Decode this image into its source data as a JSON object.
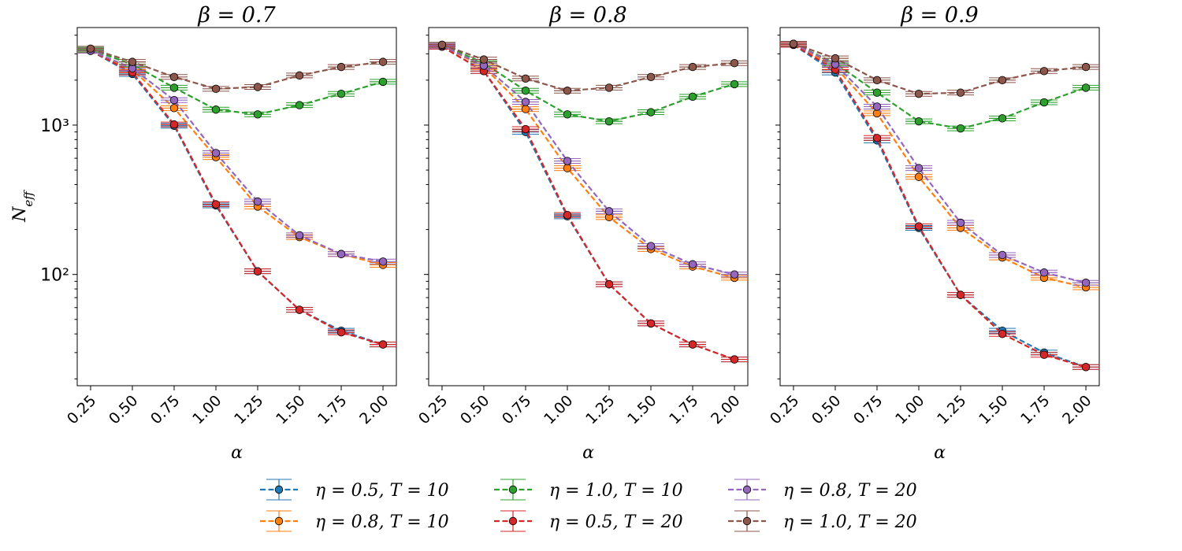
{
  "chart_data": [
    {
      "type": "line",
      "title": "β = 0.7",
      "xlabel": "α",
      "ylabel": "N_eff",
      "yscale": "log",
      "ylim": [
        18,
        4500
      ],
      "xlim": [
        0.17,
        2.08
      ],
      "x": [
        0.25,
        0.5,
        0.75,
        1.0,
        1.25,
        1.5,
        1.75,
        2.0
      ],
      "x_tick_labels": [
        "0.25",
        "0.50",
        "0.75",
        "1.00",
        "1.25",
        "1.50",
        "1.75",
        "2.00"
      ],
      "y_tick_labels": [
        "10³",
        "10²"
      ],
      "series": [
        {
          "name": "η = 0.5, T = 10",
          "values": [
            3150,
            2200,
            990,
            290,
            105,
            58,
            42,
            34
          ]
        },
        {
          "name": "η = 0.8, T = 10",
          "values": [
            3150,
            2350,
            1300,
            610,
            285,
            178,
            137,
            116
          ]
        },
        {
          "name": "η = 1.0, T = 10",
          "values": [
            3200,
            2550,
            1780,
            1270,
            1180,
            1360,
            1620,
            1950
          ]
        },
        {
          "name": "η = 0.5, T = 20",
          "values": [
            3150,
            2250,
            1010,
            295,
            105,
            58,
            41,
            34
          ]
        },
        {
          "name": "η = 0.8, T = 20",
          "values": [
            3150,
            2400,
            1470,
            650,
            308,
            183,
            137,
            122
          ]
        },
        {
          "name": "η = 1.0, T = 20",
          "values": [
            3250,
            2650,
            2100,
            1750,
            1800,
            2150,
            2450,
            2650
          ]
        }
      ]
    },
    {
      "type": "line",
      "title": "β = 0.8",
      "xlabel": "α",
      "ylabel": "",
      "yscale": "log",
      "ylim": [
        18,
        4500
      ],
      "xlim": [
        0.17,
        2.08
      ],
      "x": [
        0.25,
        0.5,
        0.75,
        1.0,
        1.25,
        1.5,
        1.75,
        2.0
      ],
      "x_tick_labels": [
        "0.25",
        "0.50",
        "0.75",
        "1.00",
        "1.25",
        "1.50",
        "1.75",
        "2.00"
      ],
      "series": [
        {
          "name": "η = 0.5, T = 10",
          "values": [
            3350,
            2300,
            900,
            245,
            86,
            47,
            34,
            27
          ]
        },
        {
          "name": "η = 0.8, T = 10",
          "values": [
            3400,
            2450,
            1280,
            515,
            242,
            148,
            113,
            95
          ]
        },
        {
          "name": "η = 1.0, T = 10",
          "values": [
            3450,
            2600,
            1700,
            1180,
            1060,
            1220,
            1550,
            1880
          ]
        },
        {
          "name": "η = 0.5, T = 20",
          "values": [
            3350,
            2300,
            940,
            250,
            86,
            47,
            34,
            27
          ]
        },
        {
          "name": "η = 0.8, T = 20",
          "values": [
            3400,
            2500,
            1430,
            575,
            265,
            155,
            117,
            100
          ]
        },
        {
          "name": "η = 1.0, T = 20",
          "values": [
            3450,
            2750,
            2050,
            1700,
            1780,
            2100,
            2450,
            2600
          ]
        }
      ]
    },
    {
      "type": "line",
      "title": "β = 0.9",
      "xlabel": "α",
      "ylabel": "",
      "yscale": "log",
      "ylim": [
        18,
        4500
      ],
      "xlim": [
        0.17,
        2.08
      ],
      "x": [
        0.25,
        0.5,
        0.75,
        1.0,
        1.25,
        1.5,
        1.75,
        2.0
      ],
      "x_tick_labels": [
        "0.25",
        "0.50",
        "0.75",
        "1.00",
        "1.25",
        "1.50",
        "1.75",
        "2.00"
      ],
      "series": [
        {
          "name": "η = 0.5, T = 10",
          "values": [
            3450,
            2250,
            790,
            205,
            73,
            42,
            30,
            24
          ]
        },
        {
          "name": "η = 0.8, T = 10",
          "values": [
            3500,
            2450,
            1200,
            450,
            205,
            130,
            95,
            82
          ]
        },
        {
          "name": "η = 1.0, T = 10",
          "values": [
            3500,
            2600,
            1650,
            1060,
            950,
            1110,
            1420,
            1780
          ]
        },
        {
          "name": "η = 0.5, T = 20",
          "values": [
            3450,
            2350,
            820,
            210,
            73,
            40,
            29,
            24
          ]
        },
        {
          "name": "η = 0.8, T = 20",
          "values": [
            3500,
            2550,
            1330,
            515,
            222,
            135,
            103,
            88
          ]
        },
        {
          "name": "η = 1.0, T = 20",
          "values": [
            3500,
            2800,
            2000,
            1620,
            1650,
            2000,
            2300,
            2450
          ]
        }
      ]
    }
  ],
  "legend": {
    "placement": "bottom-center",
    "entries": [
      {
        "label": "η = 0.5, T = 10",
        "color": "#1f77b4"
      },
      {
        "label": "η = 0.8, T = 10",
        "color": "#ff7f0e"
      },
      {
        "label": "η = 1.0, T = 10",
        "color": "#2ca02c"
      },
      {
        "label": "η = 0.5, T = 20",
        "color": "#d62728"
      },
      {
        "label": "η = 0.8, T = 20",
        "color": "#9467bd"
      },
      {
        "label": "η = 1.0, T = 20",
        "color": "#8c564b"
      }
    ]
  },
  "colors": [
    "#1f77b4",
    "#ff7f0e",
    "#2ca02c",
    "#d62728",
    "#9467bd",
    "#8c564b"
  ]
}
